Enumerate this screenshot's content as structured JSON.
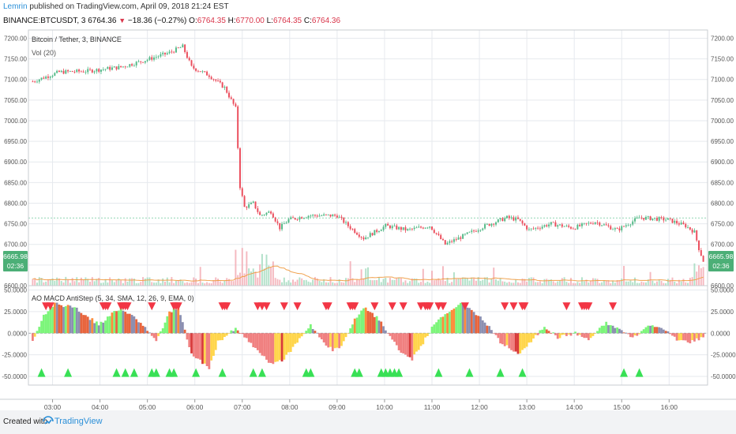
{
  "header": {
    "author": "Lemrin",
    "published_text": "published on TradingView.com, April 09, 2018 21:24 EST",
    "symbol": "BINANCE:BTCUSDT, 3",
    "last": "6764.36",
    "change": "−18.36 (−0.27%)",
    "o_label": "O:",
    "o_val": "6764.35",
    "h_label": "H:",
    "h_val": "6770.00",
    "l_label": "L:",
    "l_val": "6764.35",
    "c_label": "C:",
    "c_val": "6764.36"
  },
  "legend": {
    "pair": "Bitcoin / Tether, 3, BINANCE",
    "volume": "Vol (20)",
    "indicator": "AO MACD AntiStep (5, 34, SMA, 12, 26, 9, EMA, 0)"
  },
  "footer": {
    "created": "Created with",
    "brand": "TradingView"
  },
  "colors": {
    "up": "#53b987",
    "down": "#eb4d5c",
    "grid": "#e6e9ee",
    "ma": "#f0a04b",
    "marker_down": "#f23645",
    "marker_up": "#38e055",
    "pricebox": "#4caf77",
    "hline": "#8fd6b3"
  },
  "price_badge": {
    "value": "6665.98",
    "countdown": "02:36"
  },
  "chart_data": [
    {
      "type": "candlestick",
      "title": "Bitcoin / Tether, 3, BINANCE",
      "ylim": [
        6600,
        7220
      ],
      "yticks": [
        "7200.00",
        "7150.00",
        "7100.00",
        "7050.00",
        "7000.00",
        "6950.00",
        "6900.00",
        "6850.00",
        "6800.00",
        "6750.00",
        "6700.00",
        "6650.00",
        "6600.00"
      ],
      "xticks": [
        "03:00",
        "04:00",
        "05:00",
        "06:00",
        "07:00",
        "08:00",
        "09:00",
        "10:00",
        "11:00",
        "12:00",
        "13:00",
        "14:00",
        "15:00",
        "16:00"
      ],
      "horizontal_line": 6764,
      "last_price": 6665.98,
      "path_keypoints": [
        {
          "t": 0,
          "p": 7095
        },
        {
          "t": 12,
          "p": 7118
        },
        {
          "t": 24,
          "p": 7120
        },
        {
          "t": 40,
          "p": 7130
        },
        {
          "t": 50,
          "p": 7145
        },
        {
          "t": 62,
          "p": 7165
        },
        {
          "t": 68,
          "p": 7180
        },
        {
          "t": 72,
          "p": 7130
        },
        {
          "t": 80,
          "p": 7110
        },
        {
          "t": 87,
          "p": 7080
        },
        {
          "t": 92,
          "p": 7030
        },
        {
          "t": 94,
          "p": 6840
        },
        {
          "t": 96,
          "p": 6790
        },
        {
          "t": 100,
          "p": 6800
        },
        {
          "t": 103,
          "p": 6770
        },
        {
          "t": 108,
          "p": 6780
        },
        {
          "t": 112,
          "p": 6740
        },
        {
          "t": 116,
          "p": 6760
        },
        {
          "t": 125,
          "p": 6770
        },
        {
          "t": 138,
          "p": 6770
        },
        {
          "t": 143,
          "p": 6745
        },
        {
          "t": 150,
          "p": 6715
        },
        {
          "t": 160,
          "p": 6745
        },
        {
          "t": 170,
          "p": 6735
        },
        {
          "t": 180,
          "p": 6745
        },
        {
          "t": 187,
          "p": 6700
        },
        {
          "t": 195,
          "p": 6720
        },
        {
          "t": 205,
          "p": 6745
        },
        {
          "t": 215,
          "p": 6765
        },
        {
          "t": 220,
          "p": 6760
        },
        {
          "t": 225,
          "p": 6735
        },
        {
          "t": 235,
          "p": 6750
        },
        {
          "t": 245,
          "p": 6740
        },
        {
          "t": 255,
          "p": 6755
        },
        {
          "t": 265,
          "p": 6735
        },
        {
          "t": 275,
          "p": 6765
        },
        {
          "t": 288,
          "p": 6760
        },
        {
          "t": 296,
          "p": 6745
        },
        {
          "t": 300,
          "p": 6730
        },
        {
          "t": 302,
          "p": 6690
        },
        {
          "t": 304,
          "p": 6660
        }
      ]
    },
    {
      "type": "bar",
      "title": "Vol (20)",
      "note": "volume histogram with moving average, unlabeled axis"
    },
    {
      "type": "bar",
      "title": "AO MACD AntiStep (5, 34, SMA, 12, 26, 9, EMA, 0)",
      "ylim": [
        -60,
        55
      ],
      "yticks": [
        "50.0000",
        "25.0000",
        "0.0000",
        "-25.0000",
        "-50.0000"
      ],
      "histogram_keypoints": [
        {
          "t": 0,
          "v": -10
        },
        {
          "t": 5,
          "v": 20
        },
        {
          "t": 10,
          "v": 35
        },
        {
          "t": 20,
          "v": 28
        },
        {
          "t": 30,
          "v": 10
        },
        {
          "t": 40,
          "v": 30
        },
        {
          "t": 50,
          "v": 10
        },
        {
          "t": 56,
          "v": -10
        },
        {
          "t": 62,
          "v": 25
        },
        {
          "t": 66,
          "v": 30
        },
        {
          "t": 72,
          "v": -25
        },
        {
          "t": 80,
          "v": -40
        },
        {
          "t": 84,
          "v": -10
        },
        {
          "t": 92,
          "v": 5
        },
        {
          "t": 96,
          "v": -5
        },
        {
          "t": 104,
          "v": -25
        },
        {
          "t": 108,
          "v": -35
        },
        {
          "t": 114,
          "v": -30
        },
        {
          "t": 120,
          "v": -10
        },
        {
          "t": 126,
          "v": 10
        },
        {
          "t": 130,
          "v": -5
        },
        {
          "t": 136,
          "v": -20
        },
        {
          "t": 140,
          "v": -15
        },
        {
          "t": 146,
          "v": 15
        },
        {
          "t": 150,
          "v": 30
        },
        {
          "t": 156,
          "v": 18
        },
        {
          "t": 160,
          "v": 5
        },
        {
          "t": 166,
          "v": -20
        },
        {
          "t": 172,
          "v": -30
        },
        {
          "t": 176,
          "v": -15
        },
        {
          "t": 182,
          "v": 10
        },
        {
          "t": 188,
          "v": 25
        },
        {
          "t": 195,
          "v": 35
        },
        {
          "t": 200,
          "v": 25
        },
        {
          "t": 206,
          "v": 10
        },
        {
          "t": 212,
          "v": -10
        },
        {
          "t": 220,
          "v": -25
        },
        {
          "t": 226,
          "v": -10
        },
        {
          "t": 232,
          "v": 8
        },
        {
          "t": 238,
          "v": -5
        },
        {
          "t": 246,
          "v": 0
        },
        {
          "t": 252,
          "v": -8
        },
        {
          "t": 260,
          "v": 12
        },
        {
          "t": 266,
          "v": 5
        },
        {
          "t": 272,
          "v": -5
        },
        {
          "t": 280,
          "v": 10
        },
        {
          "t": 286,
          "v": 5
        },
        {
          "t": 292,
          "v": -8
        },
        {
          "t": 298,
          "v": -10
        },
        {
          "t": 304,
          "v": -5
        }
      ],
      "sell_markers_at": [
        6,
        8,
        32,
        33,
        34,
        40,
        41,
        42,
        43,
        54,
        64,
        65,
        66,
        86,
        87,
        88,
        102,
        104,
        106,
        114,
        120,
        133,
        134,
        144,
        145,
        146,
        155,
        163,
        168,
        176,
        178,
        179,
        180,
        184,
        186,
        196,
        214,
        218,
        222,
        223,
        242,
        249,
        250,
        251,
        252,
        263
      ],
      "buy_markers_at": [
        4,
        16,
        38,
        42,
        46,
        54,
        56,
        62,
        64,
        74,
        86,
        100,
        104,
        124,
        126,
        146,
        148,
        158,
        160,
        162,
        164,
        166,
        184,
        198,
        212,
        222,
        268,
        275
      ]
    }
  ]
}
